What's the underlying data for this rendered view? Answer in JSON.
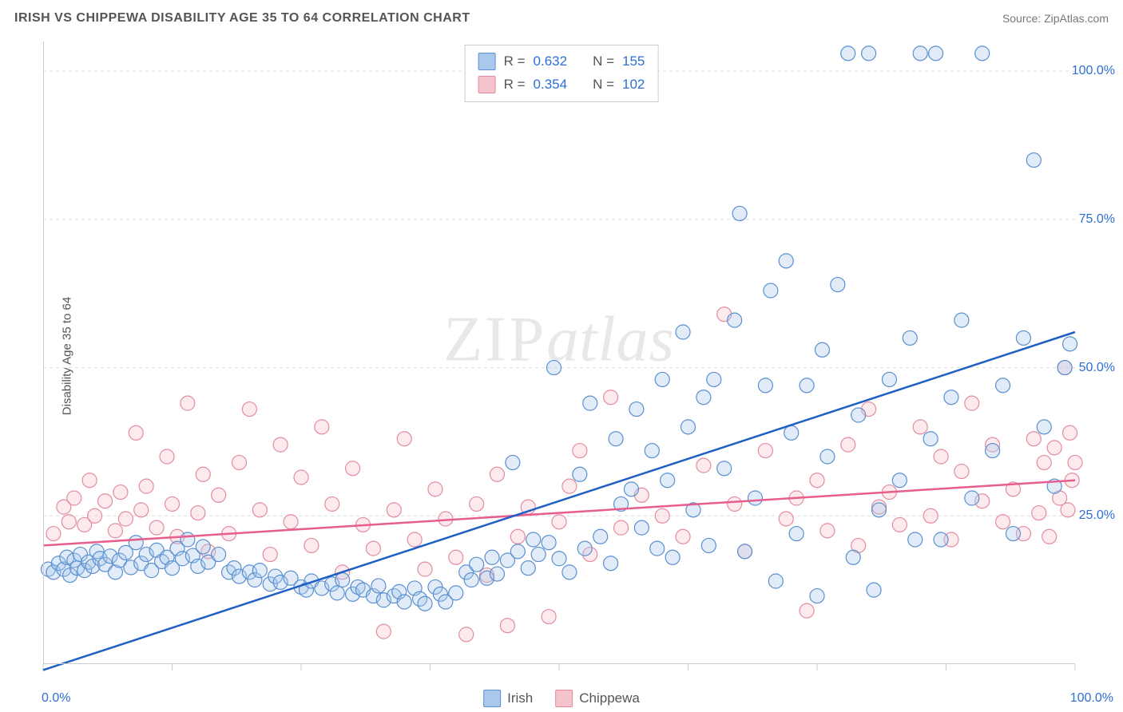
{
  "header": {
    "title": "IRISH VS CHIPPEWA DISABILITY AGE 35 TO 64 CORRELATION CHART",
    "source_label": "Source: ZipAtlas.com"
  },
  "chart": {
    "type": "scatter",
    "y_axis_label": "Disability Age 35 to 64",
    "watermark_zip": "ZIP",
    "watermark_atlas": "atlas",
    "xlim": [
      0,
      100
    ],
    "ylim": [
      0,
      105
    ],
    "x_ticks": [
      0,
      12.5,
      25,
      37.5,
      50,
      62.5,
      75,
      87.5,
      100
    ],
    "x_tick_labels": {
      "0": "0.0%",
      "100": "100.0%"
    },
    "y_ticks": [
      25,
      50,
      75,
      100
    ],
    "y_tick_labels": {
      "25": "25.0%",
      "50": "50.0%",
      "75": "75.0%",
      "100": "100.0%"
    },
    "grid_color": "#dddddd",
    "border_color": "#cccccc",
    "background_color": "#ffffff",
    "marker_radius": 9,
    "marker_stroke_width": 1.2,
    "marker_fill_opacity": 0.35,
    "line_width": 2.5,
    "series": [
      {
        "name": "Irish",
        "fill": "#a9c8ec",
        "stroke": "#5a8fd0",
        "line_color": "#1f5fc4",
        "R": "0.632",
        "N": "155",
        "trend": {
          "x1": 0,
          "y1": -1,
          "x2": 100,
          "y2": 56
        },
        "points": [
          [
            0.5,
            16
          ],
          [
            1,
            15.5
          ],
          [
            1.5,
            17
          ],
          [
            2,
            16
          ],
          [
            2.3,
            18
          ],
          [
            2.6,
            15
          ],
          [
            3,
            17.5
          ],
          [
            3.3,
            16.2
          ],
          [
            3.6,
            18.5
          ],
          [
            4,
            15.8
          ],
          [
            4.4,
            17.2
          ],
          [
            4.8,
            16.5
          ],
          [
            5.2,
            19
          ],
          [
            5.5,
            17.8
          ],
          [
            6,
            16.8
          ],
          [
            6.5,
            18.2
          ],
          [
            7,
            15.5
          ],
          [
            7.4,
            17.5
          ],
          [
            8,
            18.8
          ],
          [
            8.5,
            16.3
          ],
          [
            9,
            20.5
          ],
          [
            9.5,
            17
          ],
          [
            10,
            18.5
          ],
          [
            10.5,
            15.8
          ],
          [
            11,
            19.2
          ],
          [
            11.5,
            17.3
          ],
          [
            12,
            18
          ],
          [
            12.5,
            16.2
          ],
          [
            13,
            19.5
          ],
          [
            13.5,
            17.8
          ],
          [
            14,
            21
          ],
          [
            14.5,
            18.3
          ],
          [
            15,
            16.5
          ],
          [
            15.5,
            19.8
          ],
          [
            16,
            17.2
          ],
          [
            17,
            18.5
          ],
          [
            18,
            15.5
          ],
          [
            18.5,
            16.2
          ],
          [
            19,
            14.8
          ],
          [
            20,
            15.5
          ],
          [
            20.5,
            14.2
          ],
          [
            21,
            15.8
          ],
          [
            22,
            13.5
          ],
          [
            22.5,
            14.8
          ],
          [
            23,
            13.8
          ],
          [
            24,
            14.5
          ],
          [
            25,
            13
          ],
          [
            25.5,
            12.5
          ],
          [
            26,
            14
          ],
          [
            27,
            12.8
          ],
          [
            28,
            13.5
          ],
          [
            28.5,
            12
          ],
          [
            29,
            14.2
          ],
          [
            30,
            11.8
          ],
          [
            30.5,
            13
          ],
          [
            31,
            12.5
          ],
          [
            32,
            11.5
          ],
          [
            32.5,
            13.2
          ],
          [
            33,
            10.8
          ],
          [
            34,
            11.5
          ],
          [
            34.5,
            12.2
          ],
          [
            35,
            10.5
          ],
          [
            36,
            12.8
          ],
          [
            36.5,
            11
          ],
          [
            37,
            10.2
          ],
          [
            38,
            13
          ],
          [
            38.5,
            11.8
          ],
          [
            39,
            10.5
          ],
          [
            40,
            12
          ],
          [
            41,
            15.5
          ],
          [
            41.5,
            14.2
          ],
          [
            42,
            16.8
          ],
          [
            43,
            14.5
          ],
          [
            43.5,
            18
          ],
          [
            44,
            15.2
          ],
          [
            45,
            17.5
          ],
          [
            45.5,
            34
          ],
          [
            46,
            19
          ],
          [
            47,
            16.2
          ],
          [
            47.5,
            21
          ],
          [
            48,
            18.5
          ],
          [
            49,
            20.5
          ],
          [
            49.5,
            50
          ],
          [
            50,
            17.8
          ],
          [
            51,
            15.5
          ],
          [
            52,
            32
          ],
          [
            52.5,
            19.5
          ],
          [
            53,
            44
          ],
          [
            54,
            21.5
          ],
          [
            55,
            17
          ],
          [
            55.5,
            38
          ],
          [
            56,
            27
          ],
          [
            57,
            29.5
          ],
          [
            57.5,
            43
          ],
          [
            58,
            23
          ],
          [
            59,
            36
          ],
          [
            59.5,
            19.5
          ],
          [
            60,
            48
          ],
          [
            60.5,
            31
          ],
          [
            61,
            18
          ],
          [
            62,
            56
          ],
          [
            62.5,
            40
          ],
          [
            63,
            26
          ],
          [
            64,
            45
          ],
          [
            64.5,
            20
          ],
          [
            65,
            48
          ],
          [
            66,
            33
          ],
          [
            67,
            58
          ],
          [
            67.5,
            76
          ],
          [
            68,
            19
          ],
          [
            69,
            28
          ],
          [
            70,
            47
          ],
          [
            70.5,
            63
          ],
          [
            71,
            14
          ],
          [
            72,
            68
          ],
          [
            72.5,
            39
          ],
          [
            73,
            22
          ],
          [
            74,
            47
          ],
          [
            75,
            11.5
          ],
          [
            75.5,
            53
          ],
          [
            76,
            35
          ],
          [
            77,
            64
          ],
          [
            78,
            103
          ],
          [
            78.5,
            18
          ],
          [
            79,
            42
          ],
          [
            80,
            103
          ],
          [
            80.5,
            12.5
          ],
          [
            81,
            26
          ],
          [
            82,
            48
          ],
          [
            83,
            31
          ],
          [
            84,
            55
          ],
          [
            84.5,
            21
          ],
          [
            85,
            103
          ],
          [
            86,
            38
          ],
          [
            86.5,
            103
          ],
          [
            87,
            21
          ],
          [
            88,
            45
          ],
          [
            89,
            58
          ],
          [
            90,
            28
          ],
          [
            91,
            103
          ],
          [
            92,
            36
          ],
          [
            93,
            47
          ],
          [
            94,
            22
          ],
          [
            95,
            55
          ],
          [
            96,
            85
          ],
          [
            97,
            40
          ],
          [
            98,
            30
          ],
          [
            99,
            50
          ],
          [
            99.5,
            54
          ]
        ]
      },
      {
        "name": "Chippewa",
        "fill": "#f5c3cc",
        "stroke": "#e38ca0",
        "line_color": "#e75d8e",
        "R": "0.354",
        "N": "102",
        "trend": {
          "x1": 0,
          "y1": 20,
          "x2": 100,
          "y2": 31
        },
        "points": [
          [
            1,
            22
          ],
          [
            2,
            26.5
          ],
          [
            2.5,
            24
          ],
          [
            3,
            28
          ],
          [
            4,
            23.5
          ],
          [
            4.5,
            31
          ],
          [
            5,
            25
          ],
          [
            6,
            27.5
          ],
          [
            7,
            22.5
          ],
          [
            7.5,
            29
          ],
          [
            8,
            24.5
          ],
          [
            9,
            39
          ],
          [
            9.5,
            26
          ],
          [
            10,
            30
          ],
          [
            11,
            23
          ],
          [
            12,
            35
          ],
          [
            12.5,
            27
          ],
          [
            13,
            21.5
          ],
          [
            14,
            44
          ],
          [
            15,
            25.5
          ],
          [
            15.5,
            32
          ],
          [
            16,
            19
          ],
          [
            17,
            28.5
          ],
          [
            18,
            22
          ],
          [
            19,
            34
          ],
          [
            20,
            43
          ],
          [
            21,
            26
          ],
          [
            22,
            18.5
          ],
          [
            23,
            37
          ],
          [
            24,
            24
          ],
          [
            25,
            31.5
          ],
          [
            26,
            20
          ],
          [
            27,
            40
          ],
          [
            28,
            27
          ],
          [
            29,
            15.5
          ],
          [
            30,
            33
          ],
          [
            31,
            23.5
          ],
          [
            32,
            19.5
          ],
          [
            33,
            5.5
          ],
          [
            34,
            26
          ],
          [
            35,
            38
          ],
          [
            36,
            21
          ],
          [
            37,
            16
          ],
          [
            38,
            29.5
          ],
          [
            39,
            24.5
          ],
          [
            40,
            18
          ],
          [
            41,
            5
          ],
          [
            42,
            27
          ],
          [
            43,
            15
          ],
          [
            44,
            32
          ],
          [
            45,
            6.5
          ],
          [
            46,
            21.5
          ],
          [
            47,
            26.5
          ],
          [
            49,
            8
          ],
          [
            50,
            24
          ],
          [
            51,
            30
          ],
          [
            52,
            36
          ],
          [
            53,
            18.5
          ],
          [
            55,
            45
          ],
          [
            56,
            23
          ],
          [
            58,
            28.5
          ],
          [
            60,
            25
          ],
          [
            62,
            21.5
          ],
          [
            64,
            33.5
          ],
          [
            66,
            59
          ],
          [
            67,
            27
          ],
          [
            68,
            19
          ],
          [
            70,
            36
          ],
          [
            72,
            24.5
          ],
          [
            73,
            28
          ],
          [
            74,
            9
          ],
          [
            75,
            31
          ],
          [
            76,
            22.5
          ],
          [
            78,
            37
          ],
          [
            79,
            20
          ],
          [
            80,
            43
          ],
          [
            81,
            26.5
          ],
          [
            82,
            29
          ],
          [
            83,
            23.5
          ],
          [
            85,
            40
          ],
          [
            86,
            25
          ],
          [
            87,
            35
          ],
          [
            88,
            21
          ],
          [
            89,
            32.5
          ],
          [
            90,
            44
          ],
          [
            91,
            27.5
          ],
          [
            92,
            37
          ],
          [
            93,
            24
          ],
          [
            94,
            29.5
          ],
          [
            95,
            22
          ],
          [
            96,
            38
          ],
          [
            96.5,
            25.5
          ],
          [
            97,
            34
          ],
          [
            97.5,
            21.5
          ],
          [
            98,
            36.5
          ],
          [
            98.5,
            28
          ],
          [
            99,
            50
          ],
          [
            99.3,
            26
          ],
          [
            99.5,
            39
          ],
          [
            99.7,
            31
          ],
          [
            100,
            34
          ]
        ]
      }
    ]
  },
  "legend": {
    "irish": "Irish",
    "chippewa": "Chippewa"
  },
  "colors": {
    "title_text": "#555555",
    "axis_text": "#555555",
    "tick_value": "#2e6fd4",
    "stat_label": "#555555"
  }
}
